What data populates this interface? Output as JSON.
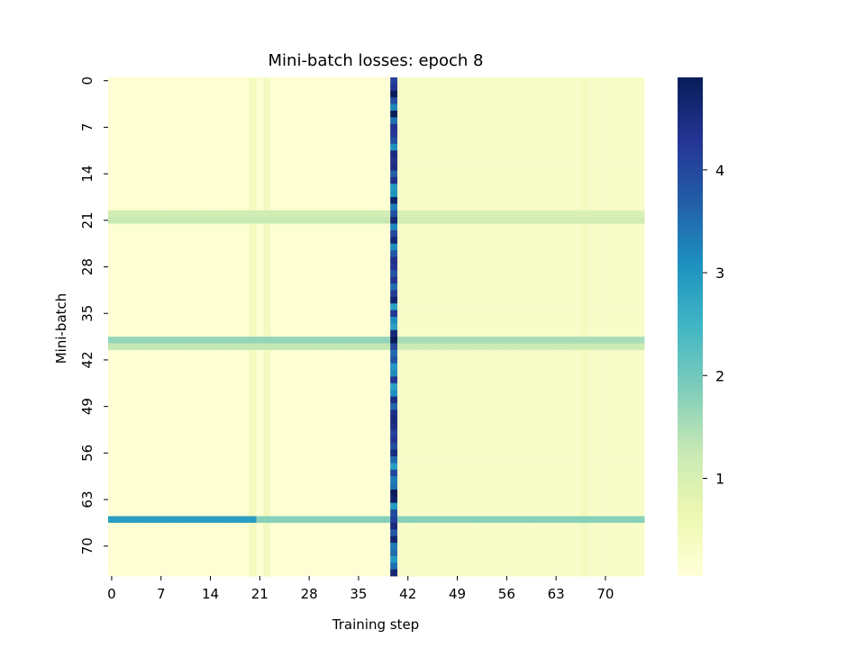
{
  "chart_data": {
    "type": "heatmap",
    "title": "Mini-batch losses: epoch 8",
    "xlabel": "Training step",
    "ylabel": "Mini-batch",
    "n_rows": 75,
    "n_cols": 76,
    "x_ticks": [
      "0",
      "7",
      "14",
      "21",
      "28",
      "35",
      "42",
      "49",
      "56",
      "63",
      "70"
    ],
    "y_ticks": [
      "0",
      "7",
      "14",
      "21",
      "28",
      "35",
      "42",
      "49",
      "56",
      "63",
      "70"
    ],
    "colorbar": {
      "colormap": "YlGnBu",
      "range": [
        0.05,
        4.9
      ],
      "ticks": [
        "1",
        "2",
        "3",
        "4"
      ]
    },
    "base_loss": {
      "steps_0_39": 0.12,
      "steps_41_75": 0.3,
      "slightly_elevated_steps": [
        20,
        22,
        67
      ],
      "slightly_elevated_value": 0.45
    },
    "high_loss_column": {
      "step": 40,
      "value_range": [
        2.8,
        4.9
      ]
    },
    "high_loss_rows": [
      {
        "mini_batch": 20,
        "loss": 1.1
      },
      {
        "mini_batch": 21,
        "loss": 1.25
      },
      {
        "mini_batch": 39,
        "loss": 1.7
      },
      {
        "mini_batch": 40,
        "loss": 1.3
      },
      {
        "mini_batch": 66,
        "loss_steps_0_20": 2.9,
        "loss_steps_21_75": 1.8
      }
    ]
  }
}
